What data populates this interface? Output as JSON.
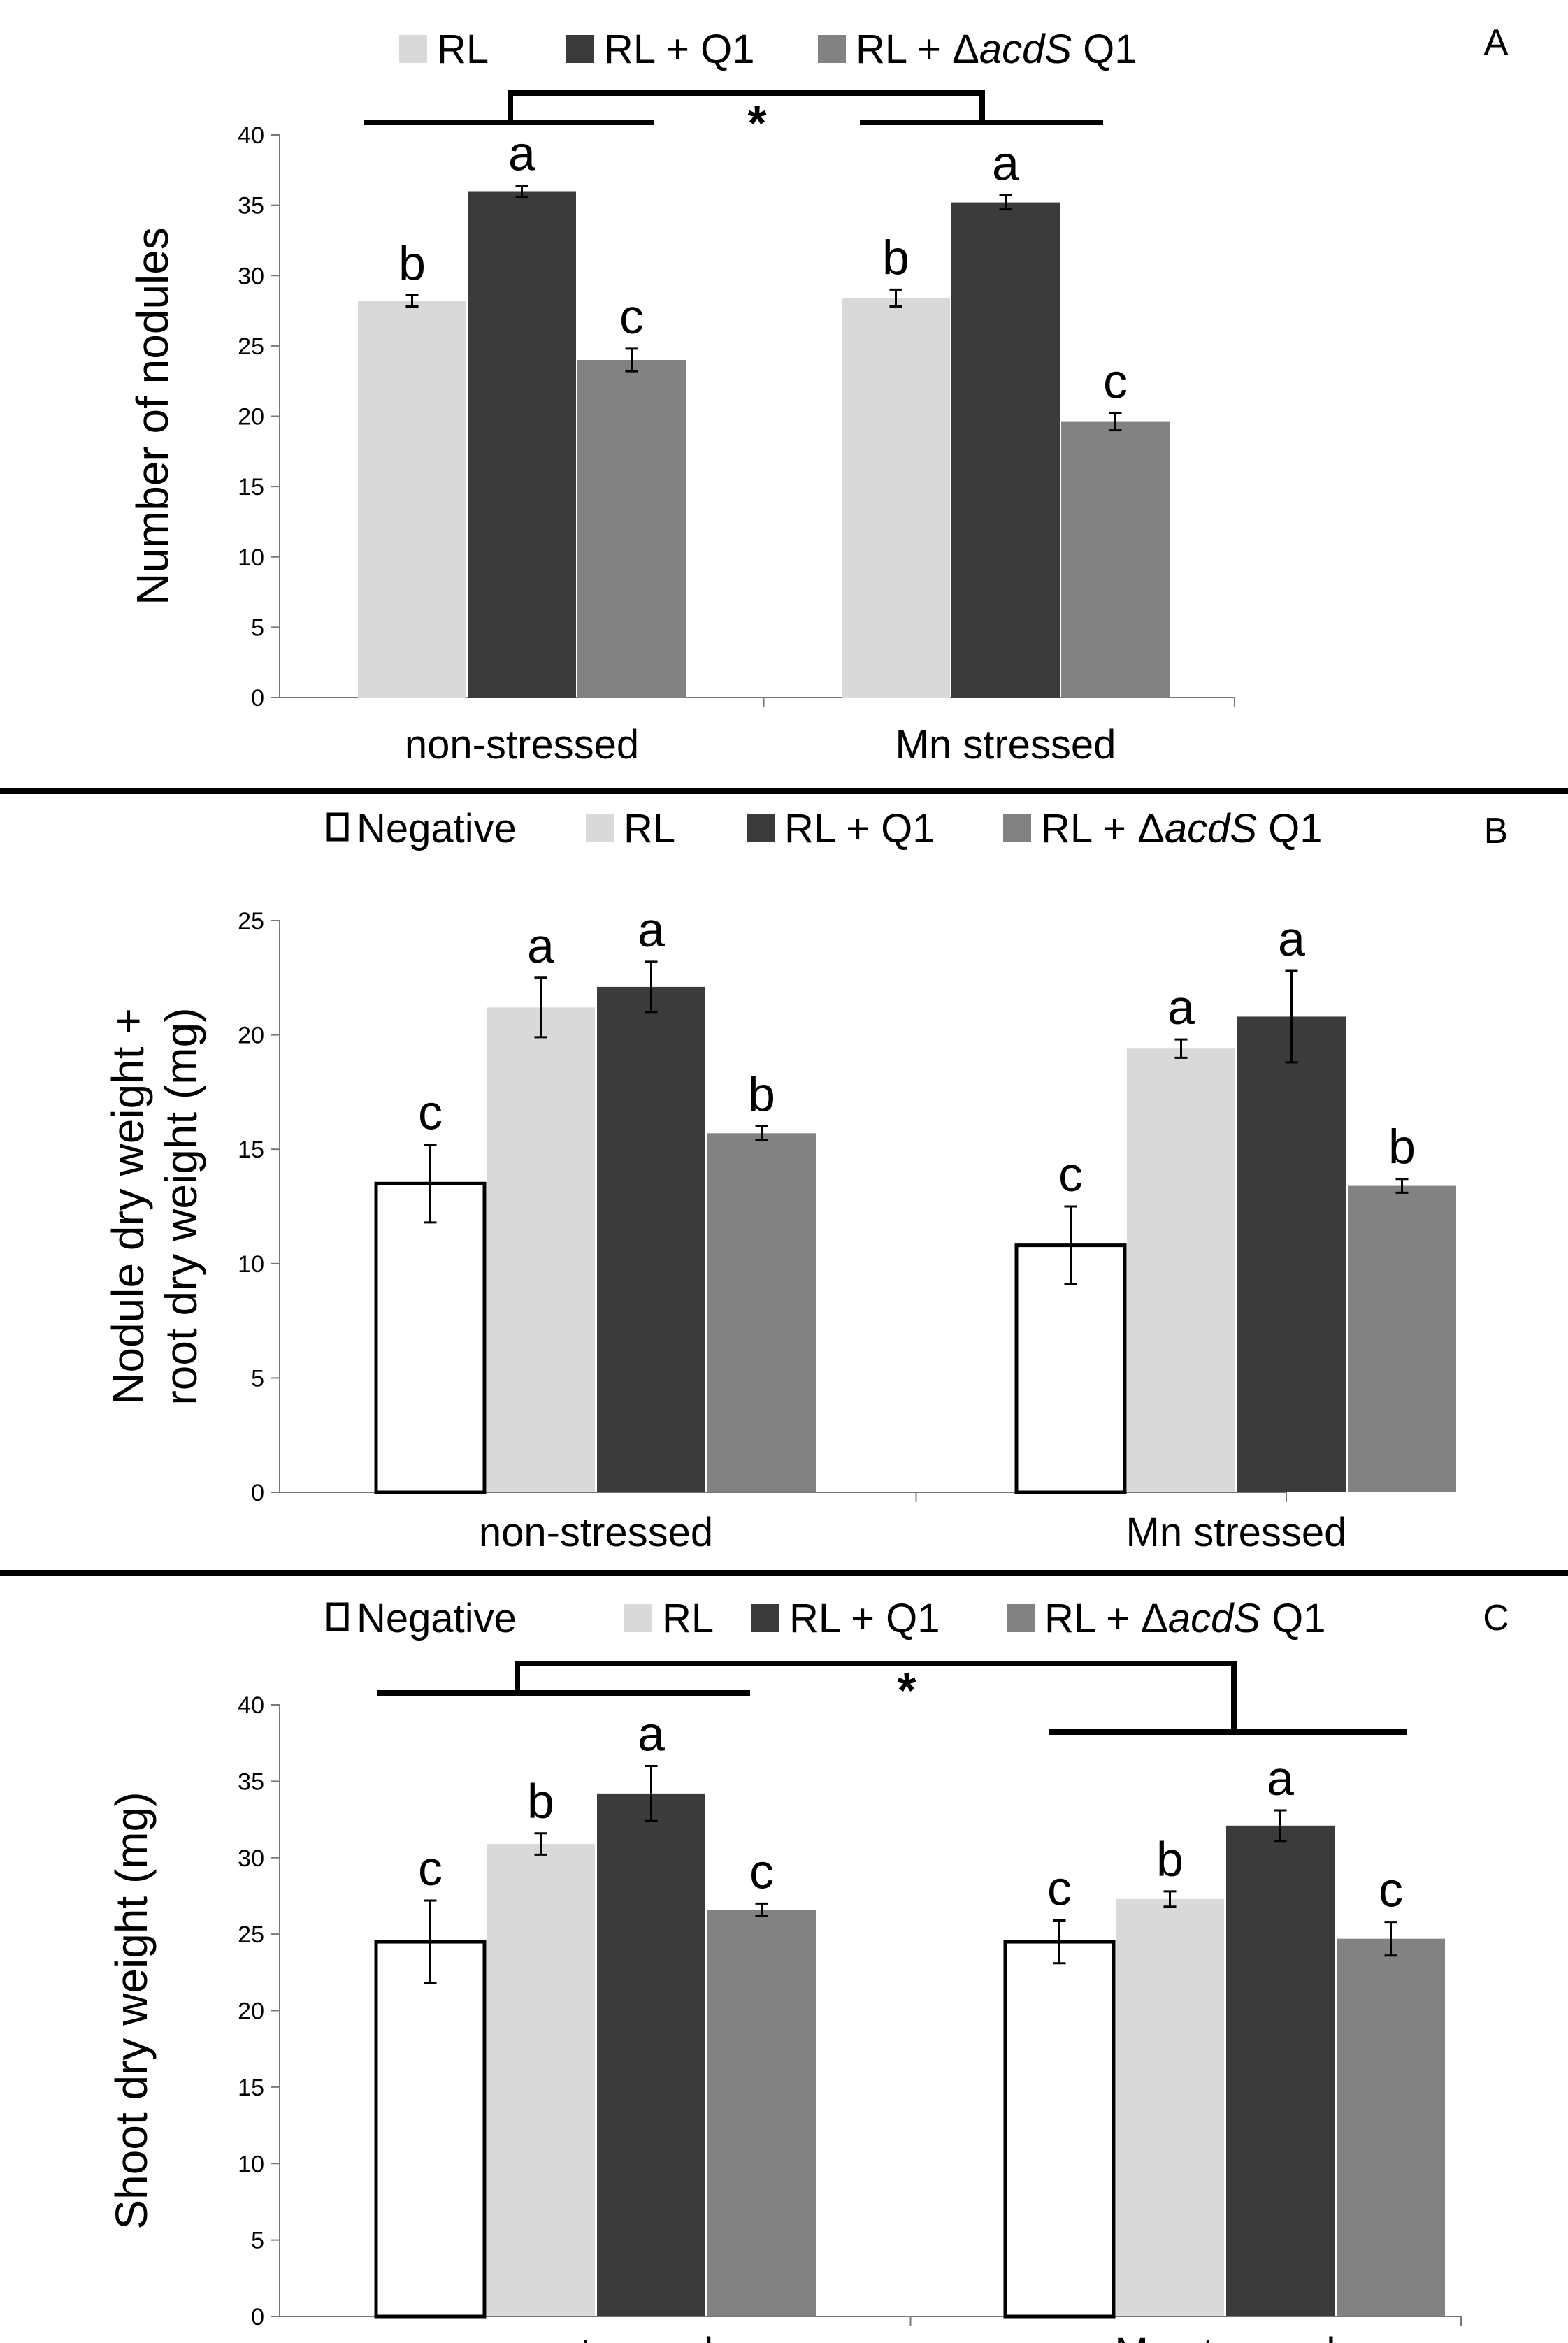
{
  "colors": {
    "Negative": "#ffffff",
    "RL": "#d9d9d9",
    "RL + Q1": "#3b3b3b",
    "RL + ΔacdS Q1": "#828282"
  },
  "chart_data": [
    {
      "type": "bar",
      "panel": "A",
      "ylabel": "Number of nodules",
      "ylim": [
        0,
        40
      ],
      "yticks": [
        0,
        5,
        10,
        15,
        20,
        25,
        30,
        35,
        40
      ],
      "categories": [
        "non-stressed",
        "Mn stressed"
      ],
      "legend": [
        {
          "label": "RL",
          "parts": [
            "RL"
          ]
        },
        {
          "label": "RL + Q1",
          "parts": [
            "RL + Q1"
          ]
        },
        {
          "label": "RL + ΔacdS Q1",
          "parts": [
            "RL + Δ",
            "acdS",
            " Q1"
          ]
        }
      ],
      "series": [
        {
          "name": "RL",
          "values": [
            28.2,
            28.4
          ],
          "errors": [
            0.4,
            0.6
          ],
          "letters": [
            "b",
            "b"
          ]
        },
        {
          "name": "RL + Q1",
          "values": [
            36.0,
            35.2
          ],
          "errors": [
            0.4,
            0.5
          ],
          "letters": [
            "a",
            "a"
          ]
        },
        {
          "name": "RL + ΔacdS Q1",
          "values": [
            24.0,
            19.6
          ],
          "errors": [
            0.8,
            0.6
          ],
          "letters": [
            "c",
            "c"
          ]
        }
      ],
      "annotation": "*"
    },
    {
      "type": "bar",
      "panel": "B",
      "ylabel": [
        "Nodule dry weight +",
        "root dry weight (mg)"
      ],
      "ylim": [
        0,
        25
      ],
      "yticks": [
        0,
        5,
        10,
        15,
        20,
        25
      ],
      "categories": [
        "non-stressed",
        "Mn stressed"
      ],
      "legend": [
        {
          "label": "Negative",
          "parts": [
            "Negative"
          ]
        },
        {
          "label": "RL",
          "parts": [
            "RL"
          ]
        },
        {
          "label": "RL + Q1",
          "parts": [
            "RL + Q1"
          ]
        },
        {
          "label": "RL + ΔacdS Q1",
          "parts": [
            "RL + Δ",
            "acdS",
            " Q1"
          ]
        }
      ],
      "series": [
        {
          "name": "Negative",
          "values": [
            13.5,
            10.8
          ],
          "errors": [
            1.7,
            1.7
          ],
          "letters": [
            "c",
            "c"
          ]
        },
        {
          "name": "RL",
          "values": [
            21.2,
            19.4
          ],
          "errors": [
            1.3,
            0.4
          ],
          "letters": [
            "a",
            "a"
          ]
        },
        {
          "name": "RL + Q1",
          "values": [
            22.1,
            20.8
          ],
          "errors": [
            1.1,
            2.0
          ],
          "letters": [
            "a",
            "a"
          ]
        },
        {
          "name": "RL + ΔacdS Q1",
          "values": [
            15.7,
            13.4
          ],
          "errors": [
            0.3,
            0.3
          ],
          "letters": [
            "b",
            "b"
          ]
        }
      ]
    },
    {
      "type": "bar",
      "panel": "C",
      "ylabel": "Shoot dry weight (mg)",
      "ylim": [
        0,
        40
      ],
      "yticks": [
        0,
        5,
        10,
        15,
        20,
        25,
        30,
        35,
        40
      ],
      "categories": [
        "non-stressed",
        "Mn stressed"
      ],
      "legend": [
        {
          "label": "Negative",
          "parts": [
            "Negative"
          ]
        },
        {
          "label": "RL",
          "parts": [
            "RL"
          ]
        },
        {
          "label": "RL + Q1",
          "parts": [
            "RL + Q1"
          ]
        },
        {
          "label": "RL + ΔacdS Q1",
          "parts": [
            "RL + Δ",
            "acdS",
            " Q1"
          ]
        }
      ],
      "series": [
        {
          "name": "Negative",
          "values": [
            24.5,
            24.5
          ],
          "errors": [
            2.7,
            1.4
          ],
          "letters": [
            "c",
            "c"
          ]
        },
        {
          "name": "RL",
          "values": [
            30.9,
            27.3
          ],
          "errors": [
            0.7,
            0.5
          ],
          "letters": [
            "b",
            "b"
          ]
        },
        {
          "name": "RL + Q1",
          "values": [
            34.2,
            32.1
          ],
          "errors": [
            1.8,
            1.0
          ],
          "letters": [
            "a",
            "a"
          ]
        },
        {
          "name": "RL + ΔacdS Q1",
          "values": [
            26.6,
            24.7
          ],
          "errors": [
            0.4,
            1.1
          ],
          "letters": [
            "c",
            "c"
          ]
        }
      ],
      "annotation": "*"
    }
  ]
}
